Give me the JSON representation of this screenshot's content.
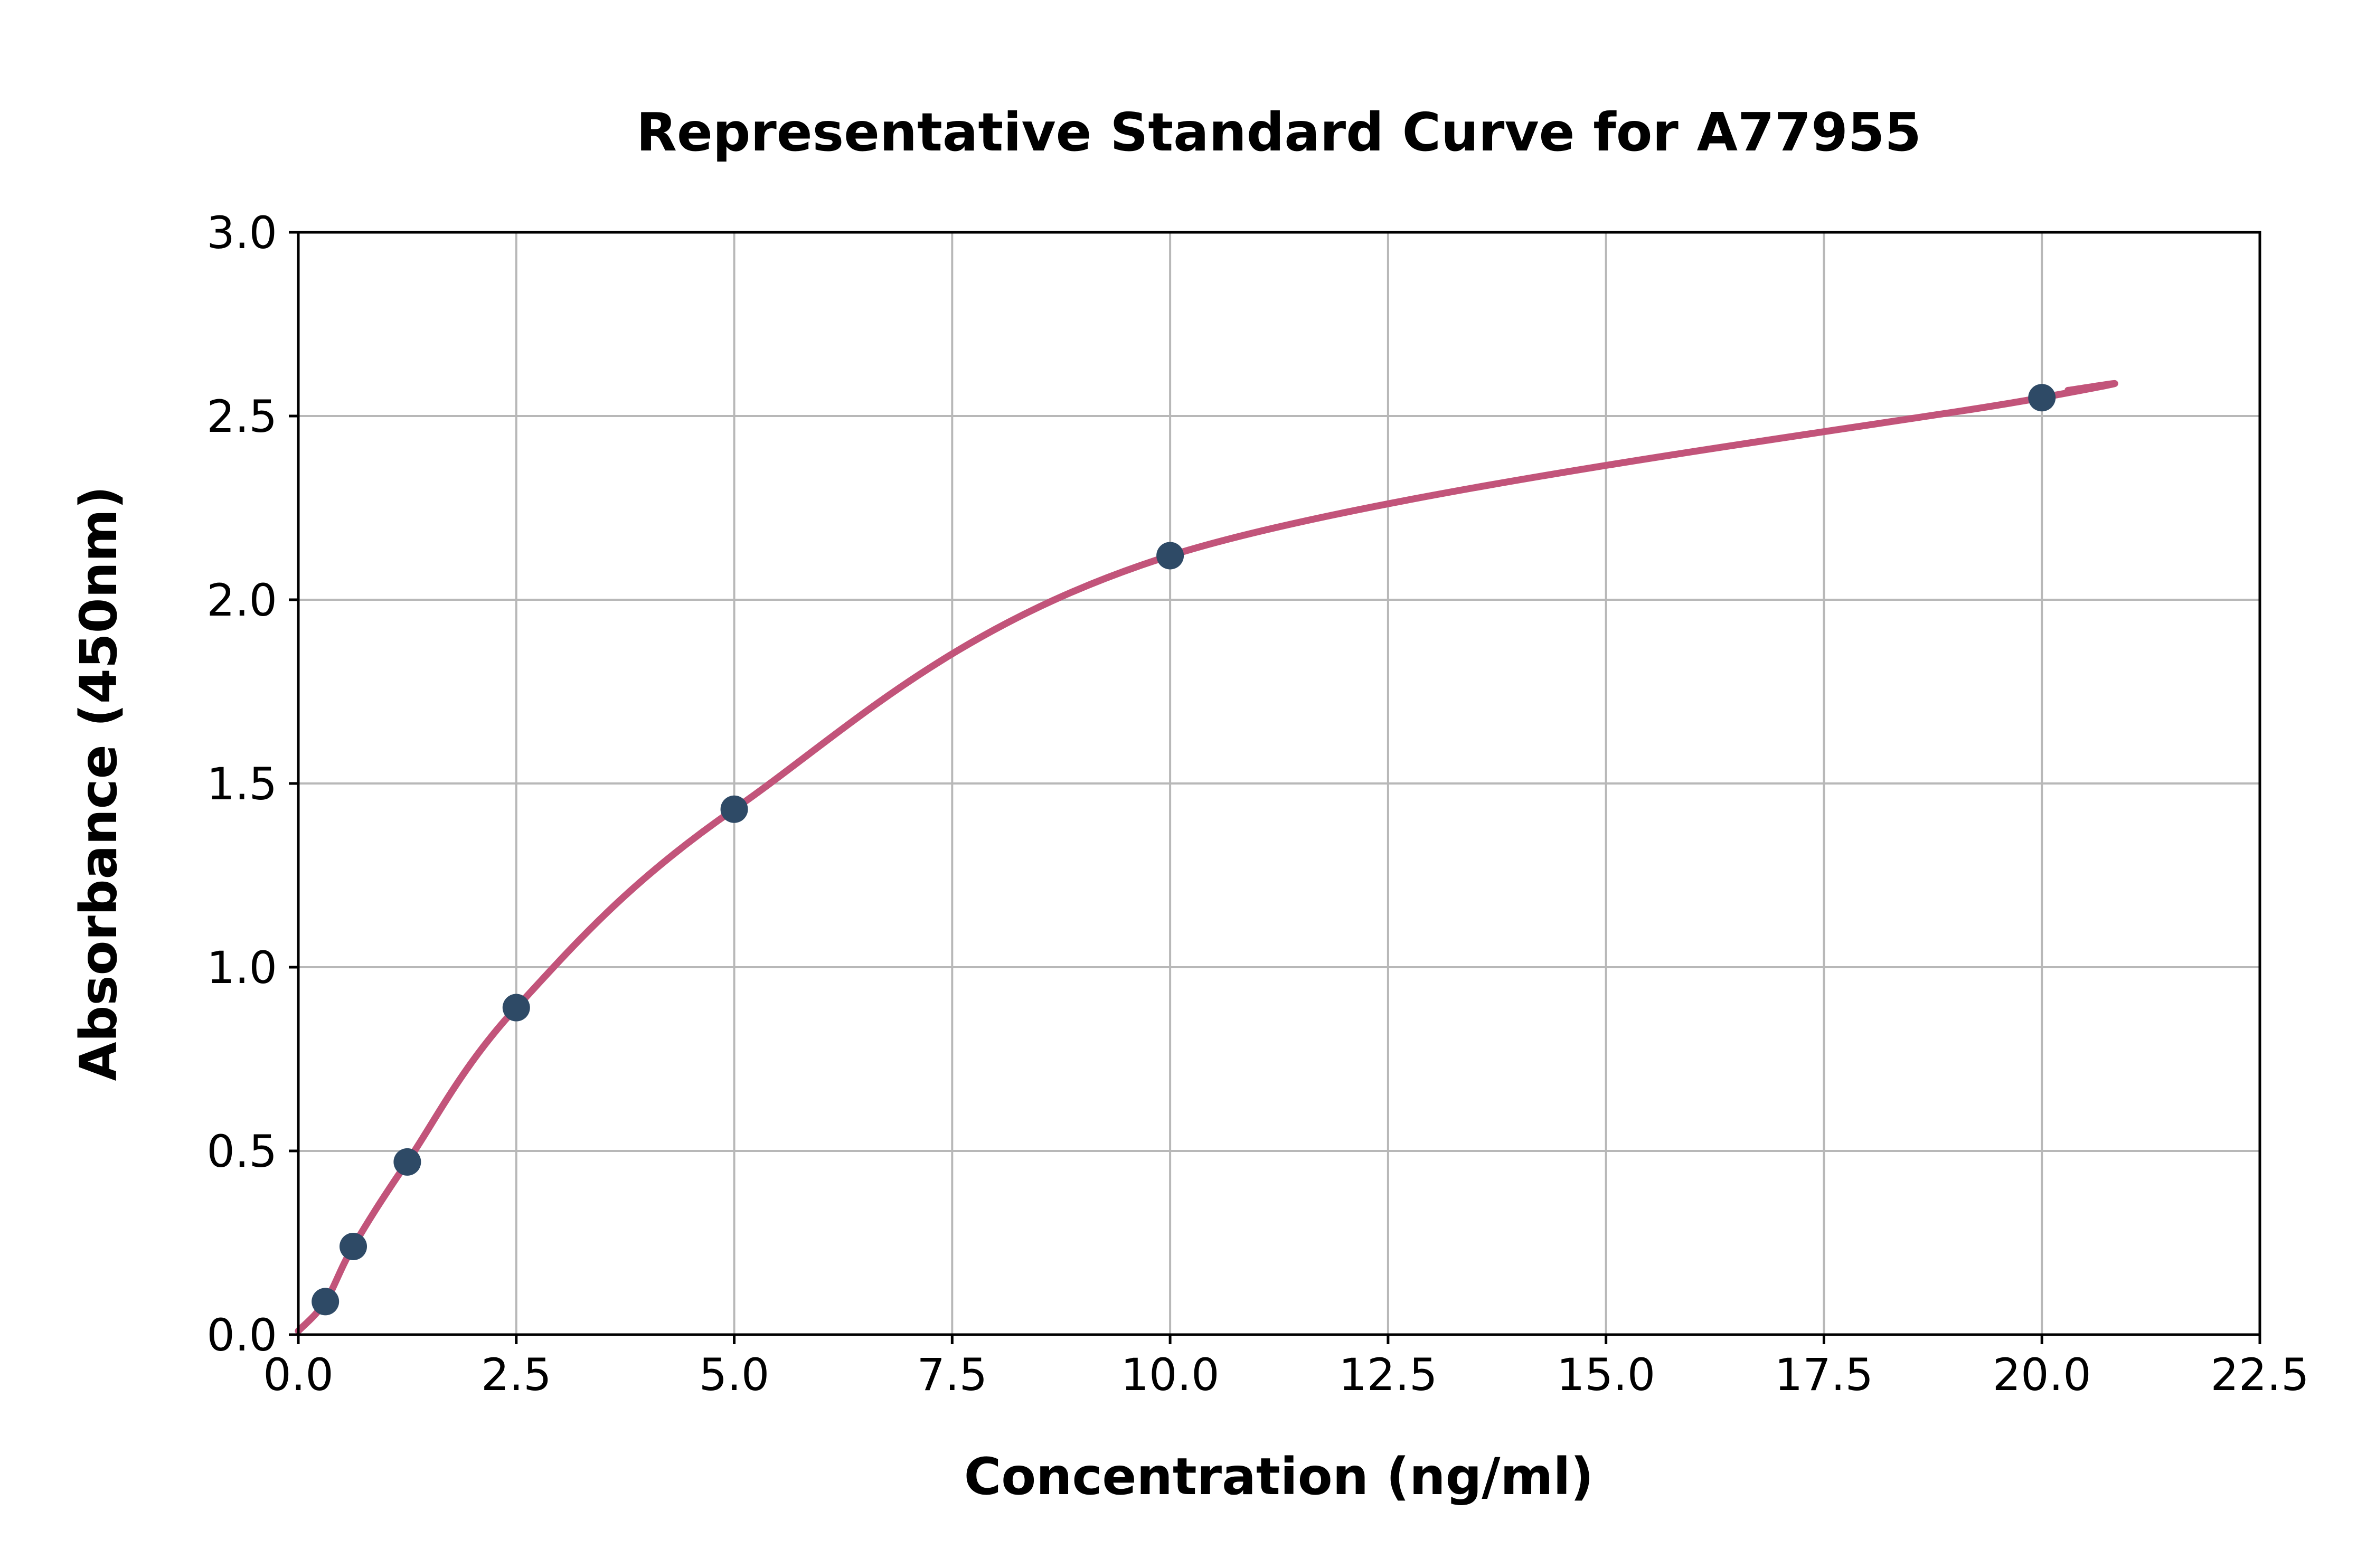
{
  "chart_data": {
    "type": "scatter",
    "title": "Representative Standard Curve for A77955",
    "xlabel": "Concentration (ng/ml)",
    "ylabel": "Absorbance (450nm)",
    "xlim": [
      0,
      22.5
    ],
    "ylim": [
      0,
      3.0
    ],
    "grid": true,
    "legend": "none",
    "x_ticks": [
      0.0,
      2.5,
      5.0,
      7.5,
      10.0,
      12.5,
      15.0,
      17.5,
      20.0,
      22.5
    ],
    "x_tick_labels": [
      "0.0",
      "2.5",
      "5.0",
      "7.5",
      "10.0",
      "12.5",
      "15.0",
      "17.5",
      "20.0",
      "22.5"
    ],
    "y_ticks": [
      0.0,
      0.5,
      1.0,
      1.5,
      2.0,
      2.5,
      3.0
    ],
    "y_tick_labels": [
      "0.0",
      "0.5",
      "1.0",
      "1.5",
      "2.0",
      "2.5",
      "3.0"
    ],
    "points": {
      "x": [
        0.31,
        0.63,
        1.25,
        2.5,
        5.0,
        10.0,
        20.0
      ],
      "y": [
        0.09,
        0.24,
        0.47,
        0.89,
        1.43,
        2.12,
        2.55
      ]
    },
    "curve_points": [
      [
        0.0,
        0.01
      ],
      [
        0.31,
        0.09
      ],
      [
        0.63,
        0.24
      ],
      [
        1.25,
        0.47
      ],
      [
        2.5,
        0.89
      ],
      [
        5.0,
        1.43
      ],
      [
        10.0,
        2.12
      ],
      [
        20.0,
        2.55
      ],
      [
        20.3,
        2.57
      ]
    ],
    "colors": {
      "point": "#2e4a66",
      "curve": "#c2547a",
      "grid": "#b8b8b8",
      "spine": "#000000",
      "background": "#ffffff"
    }
  }
}
